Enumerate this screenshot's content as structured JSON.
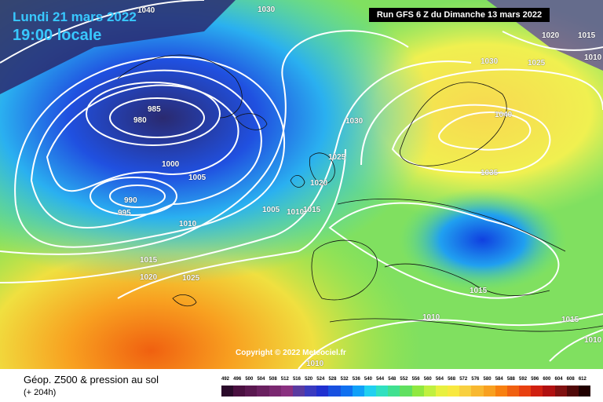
{
  "header": {
    "date": "Lundi 21 mars 2022",
    "time": "19:00 locale",
    "run": "Run GFS 6 Z du Dimanche 13 mars 2022"
  },
  "footer": {
    "title": "Géop. Z500 & pression au sol",
    "subtitle": "(+ 204h)"
  },
  "copyright": "Copyright © 2022 Meteociel.fr",
  "isobars": [
    "1040",
    "1030",
    "1020",
    "1015",
    "1030",
    "1025",
    "1010",
    "980",
    "985",
    "990",
    "995",
    "1000",
    "1005",
    "1010",
    "1015",
    "1020",
    "1025",
    "1005",
    "1010",
    "1015",
    "1020",
    "1025",
    "1030",
    "1040",
    "1035",
    "1015",
    "1010",
    "1015",
    "1010",
    "1010"
  ],
  "legend": {
    "values": [
      "492",
      "496",
      "500",
      "504",
      "508",
      "512",
      "516",
      "520",
      "524",
      "528",
      "532",
      "536",
      "540",
      "544",
      "548",
      "552",
      "556",
      "560",
      "564",
      "568",
      "572",
      "576",
      "580",
      "584",
      "588",
      "592",
      "596",
      "600",
      "604",
      "608",
      "612"
    ],
    "colors": [
      "#2a0a2a",
      "#4a1040",
      "#5a1850",
      "#6a2060",
      "#7a2870",
      "#8a3080",
      "#5a3aa0",
      "#3a3ac0",
      "#2030d0",
      "#1850e0",
      "#1070f0",
      "#10a0f8",
      "#20d0f0",
      "#30e0c0",
      "#40e090",
      "#60e060",
      "#90e840",
      "#c0f040",
      "#e8f040",
      "#f8e840",
      "#f8d040",
      "#f8b830",
      "#f8a020",
      "#f88010",
      "#f06010",
      "#e84010",
      "#d02010",
      "#b01010",
      "#801010",
      "#500808",
      "#200000"
    ]
  },
  "colors": {
    "deep-low": "#2a2a6a",
    "low": "#1a4adf",
    "mid-blue": "#2ab8f0",
    "cyan": "#40e0d0",
    "green": "#70e070",
    "yellow": "#f0e840",
    "orange": "#f89030",
    "isobar": "#ffffff"
  }
}
